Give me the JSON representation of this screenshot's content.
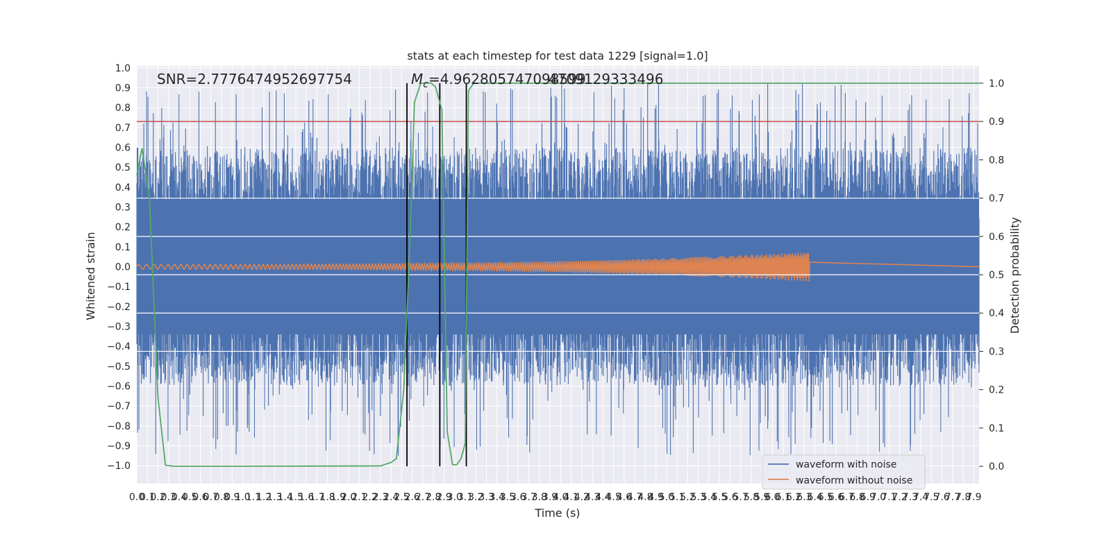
{
  "chart_data": {
    "type": "line",
    "title": "stats at each timestep for test data 1229 [signal=1.0]",
    "xlabel": "Time (s)",
    "ylabel": "Whitened strain",
    "y2label": "Detection probability",
    "xlim": [
      0.0,
      7.95
    ],
    "ylim": [
      -1.09,
      1.01
    ],
    "y2lim": [
      -0.045,
      1.045
    ],
    "x_ticks": [
      "0.0",
      "0.1",
      "0.2",
      "0.3",
      "0.4",
      "0.5",
      "0.6",
      "0.7",
      "0.8",
      "0.9",
      "1.0",
      "1.1",
      "1.2",
      "1.3",
      "1.4",
      "1.5",
      "1.6",
      "1.7",
      "1.8",
      "1.9",
      "2.0",
      "2.1",
      "2.2",
      "2.3",
      "2.4",
      "2.5",
      "2.6",
      "2.7",
      "2.8",
      "2.9",
      "3.0",
      "3.1",
      "3.2",
      "3.3",
      "3.4",
      "3.5",
      "3.6",
      "3.7",
      "3.8",
      "3.9",
      "4.0",
      "4.1",
      "4.2",
      "4.3",
      "4.4",
      "4.5",
      "4.6",
      "4.7",
      "4.8",
      "4.9",
      "5.0",
      "5.1",
      "5.2",
      "5.3",
      "5.4",
      "5.5",
      "5.6",
      "5.7",
      "5.8",
      "5.9",
      "6.0",
      "6.1",
      "6.2",
      "6.3",
      "6.4",
      "6.5",
      "6.6",
      "6.7",
      "6.8",
      "6.9",
      "7.0",
      "7.1",
      "7.2",
      "7.3",
      "7.4",
      "7.5",
      "7.6",
      "7.7",
      "7.8",
      "7.9"
    ],
    "y_ticks": [
      "1.0",
      "0.9",
      "0.8",
      "0.7",
      "0.6",
      "0.5",
      "0.4",
      "0.3",
      "0.2",
      "0.1",
      "0.0",
      "−0.1",
      "−0.2",
      "−0.3",
      "−0.4",
      "−0.5",
      "−0.6",
      "−0.7",
      "−0.8",
      "−0.9",
      "−1.0"
    ],
    "y2_ticks": [
      "1.0",
      "0.9",
      "0.8",
      "0.7",
      "0.6",
      "0.5",
      "0.4",
      "0.3",
      "0.2",
      "0.1",
      "0.0"
    ],
    "annotations": {
      "snr": "SNR=2.7776474952697754",
      "mc_symbol": "M",
      "mc_sub": "c",
      "mc_value": "=4.962805747098599",
      "mc_overlap": "4709129333496"
    },
    "threshold": 0.9,
    "vlines": [
      2.55,
      2.86,
      3.11
    ],
    "noise_envelope": {
      "peak_max": 0.92,
      "peak_min": -0.95,
      "typical_upper": 0.6,
      "typical_lower": -0.6
    },
    "chirp": {
      "start": 0.0,
      "end": 6.35,
      "amp_start": 0.012,
      "amp_end": 0.075
    },
    "series": [
      {
        "name": "detection probability",
        "color": "#55a868",
        "x": [
          0.0,
          0.05,
          0.12,
          0.2,
          0.27,
          0.35,
          1.0,
          2.3,
          2.4,
          2.45,
          2.52,
          2.58,
          2.62,
          2.68,
          2.75,
          2.78,
          2.82,
          2.88,
          2.93,
          2.98,
          3.02,
          3.06,
          3.1,
          3.13,
          3.18,
          7.95
        ],
        "y": [
          0.76,
          0.83,
          0.7,
          0.18,
          0.003,
          0.0,
          0.0,
          0.001,
          0.01,
          0.02,
          0.2,
          0.6,
          0.95,
          1.0,
          1.0,
          1.0,
          0.99,
          0.93,
          0.09,
          0.004,
          0.004,
          0.02,
          0.06,
          0.98,
          1.0,
          1.0
        ]
      }
    ],
    "legend": {
      "position": "bottom-right",
      "items": [
        {
          "label": "waveform with noise",
          "color": "#4c72b0"
        },
        {
          "label": "waveform without noise",
          "color": "#dd8452"
        }
      ]
    },
    "colors": {
      "background": "#eaeaf2",
      "grid": "#ffffff",
      "noise": "#4c72b0",
      "clean": "#dd8452",
      "threshold": "#c44e52",
      "vline": "#000000"
    }
  }
}
